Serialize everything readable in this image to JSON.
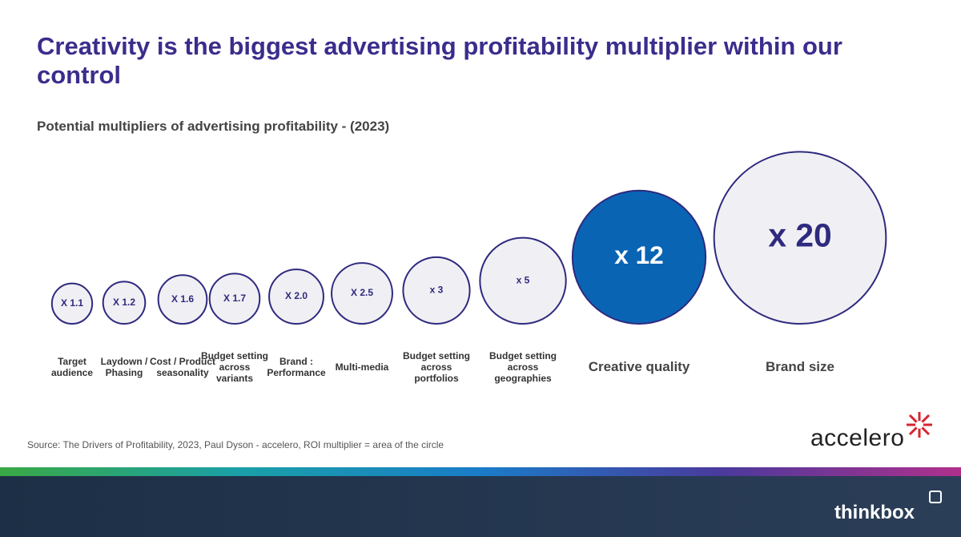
{
  "chart_data": {
    "type": "circles",
    "title": "Creativity is the biggest advertising profitability multiplier within our control",
    "subtitle": "Potential multipliers of advertising profitability - (2023)",
    "categories": [
      "Target audience",
      "Laydown / Phasing",
      "Cost / Product seasonality",
      "Budget setting across variants",
      "Brand : Performance",
      "Multi-media",
      "Budget setting across portfolios",
      "Budget setting across geographies",
      "Creative quality",
      "Brand size"
    ],
    "values": [
      1.1,
      1.2,
      1.6,
      1.7,
      2.0,
      2.5,
      3,
      5,
      12,
      20
    ],
    "value_labels": [
      "X 1.1",
      "X 1.2",
      "X 1.6",
      "X 1.7",
      "X 2.0",
      "X 2.5",
      "x 3",
      "x 5",
      "x 12",
      "x 20"
    ],
    "colors": [
      "#f0eff4",
      "#f0eff4",
      "#f0eff4",
      "#f0eff4",
      "#f0eff4",
      "#f0eff4",
      "#f0eff4",
      "#f0eff4",
      "#0a64b4",
      "#f0eff4"
    ],
    "stroke": "#2e2a7e",
    "source": "Source: The Drivers of Profitability, 2023, Paul Dyson - accelero, ROI multiplier = area of the circle"
  },
  "logos": {
    "accelero": "accelero",
    "thinkbox": "thinkbox"
  }
}
